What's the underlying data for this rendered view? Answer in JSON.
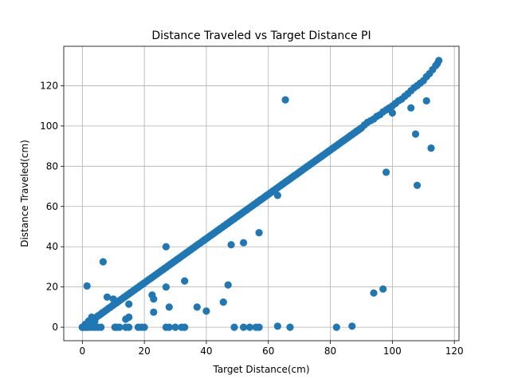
{
  "chart_data": {
    "type": "scatter",
    "title": "Distance Traveled vs Target Distance PI",
    "xlabel": "Target Distance(cm)",
    "ylabel": "Distance Traveled(cm)",
    "xlim": [
      -6,
      121.5
    ],
    "ylim": [
      -6.7,
      139.6
    ],
    "xticks": [
      0,
      20,
      40,
      60,
      80,
      100,
      120
    ],
    "yticks": [
      0,
      20,
      40,
      60,
      80,
      100,
      120
    ],
    "grid": true,
    "point_color": "#1f77b4",
    "series": [
      {
        "trend_points": [
          [
            0,
            0
          ],
          [
            0.5,
            0.4
          ],
          [
            1,
            1.5
          ],
          [
            1.5,
            1.2
          ],
          [
            2,
            2.4
          ],
          [
            2.5,
            2.7
          ],
          [
            3,
            3.4
          ],
          [
            3.5,
            3.8
          ],
          [
            4,
            4.5
          ],
          [
            4.5,
            4.9
          ],
          [
            5,
            5.6
          ],
          [
            5.5,
            6.0
          ],
          [
            6,
            6.6
          ],
          [
            6.5,
            7.2
          ],
          [
            7,
            7.7
          ],
          [
            7.5,
            8.3
          ],
          [
            8,
            8.8
          ],
          [
            8.5,
            9.4
          ],
          [
            9,
            9.9
          ],
          [
            9.5,
            10.5
          ],
          [
            10,
            11.0
          ],
          [
            10.5,
            11.6
          ],
          [
            11,
            12.1
          ],
          [
            11.5,
            12.7
          ],
          [
            12,
            13.2
          ],
          [
            12.5,
            13.8
          ],
          [
            13,
            14.3
          ],
          [
            13.5,
            14.9
          ],
          [
            14,
            15.4
          ],
          [
            14.5,
            16.0
          ],
          [
            15,
            16.5
          ],
          [
            15.5,
            17.1
          ],
          [
            16,
            17.6
          ],
          [
            16.5,
            18.2
          ],
          [
            17,
            18.7
          ],
          [
            17.5,
            19.3
          ],
          [
            18,
            19.8
          ],
          [
            18.5,
            20.4
          ],
          [
            19,
            20.9
          ],
          [
            19.5,
            21.5
          ],
          [
            20,
            22.0
          ],
          [
            20.5,
            22.6
          ],
          [
            21,
            23.1
          ],
          [
            21.5,
            23.7
          ],
          [
            22,
            24.2
          ],
          [
            22.5,
            24.8
          ],
          [
            23,
            25.3
          ],
          [
            23.5,
            25.9
          ],
          [
            24,
            26.4
          ],
          [
            24.5,
            27.0
          ],
          [
            25,
            27.5
          ],
          [
            25.5,
            28.1
          ],
          [
            26,
            28.6
          ],
          [
            26.5,
            29.2
          ],
          [
            27,
            29.7
          ],
          [
            27.5,
            30.3
          ],
          [
            28,
            30.8
          ],
          [
            28.5,
            31.4
          ],
          [
            29,
            31.9
          ],
          [
            29.5,
            32.5
          ],
          [
            30,
            33.0
          ],
          [
            30.5,
            33.6
          ],
          [
            31,
            34.1
          ],
          [
            31.5,
            34.7
          ],
          [
            32,
            35.2
          ],
          [
            32.5,
            35.8
          ],
          [
            33,
            36.3
          ],
          [
            33.5,
            36.9
          ],
          [
            34,
            37.4
          ],
          [
            34.5,
            38.0
          ],
          [
            35,
            38.5
          ],
          [
            35.5,
            39.1
          ],
          [
            36,
            39.6
          ],
          [
            36.5,
            40.2
          ],
          [
            37,
            40.7
          ],
          [
            37.5,
            41.3
          ],
          [
            38,
            41.8
          ],
          [
            38.5,
            42.4
          ],
          [
            39,
            42.9
          ],
          [
            39.5,
            43.5
          ],
          [
            40,
            44.0
          ],
          [
            40.5,
            44.6
          ],
          [
            41,
            45.1
          ],
          [
            41.5,
            45.7
          ],
          [
            42,
            46.2
          ],
          [
            42.5,
            46.8
          ],
          [
            43,
            47.3
          ],
          [
            43.5,
            47.9
          ],
          [
            44,
            48.4
          ],
          [
            44.5,
            49.0
          ],
          [
            45,
            49.5
          ],
          [
            45.5,
            50.1
          ],
          [
            46,
            50.6
          ],
          [
            46.5,
            51.2
          ],
          [
            47,
            51.7
          ],
          [
            47.5,
            52.3
          ],
          [
            48,
            52.8
          ],
          [
            48.5,
            53.4
          ],
          [
            49,
            53.9
          ],
          [
            49.5,
            54.5
          ],
          [
            50,
            55.0
          ],
          [
            50.5,
            55.6
          ],
          [
            51,
            56.1
          ],
          [
            51.5,
            56.7
          ],
          [
            52,
            57.2
          ],
          [
            52.5,
            57.8
          ],
          [
            53,
            58.3
          ],
          [
            53.5,
            58.9
          ],
          [
            54,
            59.4
          ],
          [
            54.5,
            60.0
          ],
          [
            55,
            60.5
          ],
          [
            55.5,
            61.1
          ],
          [
            56,
            61.6
          ],
          [
            56.5,
            62.2
          ],
          [
            57,
            62.7
          ],
          [
            57.5,
            63.3
          ],
          [
            58,
            63.8
          ],
          [
            58.5,
            64.4
          ],
          [
            59,
            64.9
          ],
          [
            59.5,
            65.5
          ],
          [
            60,
            66.0
          ],
          [
            60.5,
            66.6
          ],
          [
            61,
            67.1
          ],
          [
            61.5,
            67.7
          ],
          [
            62,
            68.2
          ],
          [
            62.5,
            68.8
          ],
          [
            63,
            69.3
          ],
          [
            63.5,
            69.9
          ],
          [
            64,
            70.4
          ],
          [
            64.5,
            71.0
          ],
          [
            65,
            71.5
          ],
          [
            65.5,
            72.1
          ],
          [
            66,
            72.6
          ],
          [
            66.5,
            73.2
          ],
          [
            67,
            73.7
          ],
          [
            67.5,
            74.3
          ],
          [
            68,
            74.8
          ],
          [
            68.5,
            75.4
          ],
          [
            69,
            75.9
          ],
          [
            69.5,
            76.5
          ],
          [
            70,
            77.0
          ],
          [
            70.5,
            77.6
          ],
          [
            71,
            78.1
          ],
          [
            71.5,
            78.7
          ],
          [
            72,
            79.2
          ],
          [
            72.5,
            79.8
          ],
          [
            73,
            80.3
          ],
          [
            73.5,
            80.9
          ],
          [
            74,
            81.4
          ],
          [
            74.5,
            82.0
          ],
          [
            75,
            82.5
          ],
          [
            75.5,
            83.1
          ],
          [
            76,
            83.6
          ],
          [
            76.5,
            84.2
          ],
          [
            77,
            84.7
          ],
          [
            77.5,
            85.3
          ],
          [
            78,
            85.8
          ],
          [
            78.5,
            86.4
          ],
          [
            79,
            86.9
          ],
          [
            79.5,
            87.5
          ],
          [
            80,
            88.0
          ],
          [
            80.5,
            88.6
          ],
          [
            81,
            89.1
          ],
          [
            81.5,
            89.7
          ],
          [
            82,
            90.2
          ],
          [
            82.5,
            90.8
          ],
          [
            83,
            91.3
          ],
          [
            83.5,
            91.9
          ],
          [
            84,
            92.4
          ],
          [
            84.5,
            93.0
          ],
          [
            85,
            93.5
          ],
          [
            85.5,
            94.1
          ],
          [
            86,
            94.6
          ],
          [
            86.5,
            95.2
          ],
          [
            87,
            95.7
          ],
          [
            87.5,
            96.3
          ],
          [
            88,
            96.8
          ],
          [
            88.5,
            97.4
          ],
          [
            89,
            97.9
          ],
          [
            89.5,
            98.5
          ],
          [
            90,
            99.0
          ],
          [
            91,
            100.5
          ],
          [
            92,
            101.8
          ],
          [
            93,
            102.6
          ],
          [
            94,
            103.5
          ],
          [
            95,
            104.8
          ],
          [
            96,
            105.6
          ],
          [
            97,
            107.0
          ],
          [
            98,
            108.0
          ],
          [
            99,
            109.0
          ],
          [
            100,
            110.0
          ],
          [
            101,
            111.2
          ],
          [
            102,
            112.5
          ],
          [
            103,
            113.3
          ],
          [
            104,
            114.8
          ],
          [
            105,
            116.0
          ],
          [
            106,
            117.5
          ],
          [
            107,
            119.0
          ],
          [
            108,
            120.0
          ],
          [
            109,
            121.3
          ],
          [
            110,
            122.5
          ],
          [
            111,
            124.5
          ],
          [
            112,
            126.0
          ],
          [
            113,
            128.0
          ],
          [
            114,
            130.0
          ],
          [
            115,
            132.5
          ]
        ],
        "outlier_points": [
          [
            0,
            0
          ],
          [
            0.5,
            0
          ],
          [
            1,
            0
          ],
          [
            1.5,
            0
          ],
          [
            2,
            0
          ],
          [
            3,
            0
          ],
          [
            4,
            0
          ],
          [
            5,
            0
          ],
          [
            6,
            0
          ],
          [
            2,
            3
          ],
          [
            4,
            3
          ],
          [
            3,
            5
          ],
          [
            10.5,
            0
          ],
          [
            11,
            0
          ],
          [
            12,
            0
          ],
          [
            14,
            0
          ],
          [
            15,
            0
          ],
          [
            18,
            0
          ],
          [
            19,
            0
          ],
          [
            20,
            0
          ],
          [
            27,
            0
          ],
          [
            28,
            0
          ],
          [
            30,
            0
          ],
          [
            32,
            0
          ],
          [
            33,
            0
          ],
          [
            49,
            0
          ],
          [
            52,
            0
          ],
          [
            54,
            0
          ],
          [
            56,
            0
          ],
          [
            57,
            0
          ],
          [
            63,
            0.5
          ],
          [
            67,
            0
          ],
          [
            82,
            0
          ],
          [
            87,
            0.5
          ],
          [
            1.5,
            20.5
          ],
          [
            6.7,
            32.5
          ],
          [
            8,
            15
          ],
          [
            10,
            14
          ],
          [
            14,
            4
          ],
          [
            15,
            5
          ],
          [
            15,
            11.5
          ],
          [
            22.5,
            16
          ],
          [
            23,
            14
          ],
          [
            23,
            7.5
          ],
          [
            27,
            20
          ],
          [
            27,
            40
          ],
          [
            28,
            10
          ],
          [
            33,
            23
          ],
          [
            37,
            10
          ],
          [
            40,
            8
          ],
          [
            45.5,
            12.5
          ],
          [
            47,
            21
          ],
          [
            48,
            41
          ],
          [
            52,
            42
          ],
          [
            57,
            47
          ],
          [
            63,
            65.5
          ],
          [
            65.5,
            113
          ],
          [
            94,
            17
          ],
          [
            97,
            19
          ],
          [
            98,
            77
          ],
          [
            100,
            106.5
          ],
          [
            106,
            109
          ],
          [
            107.5,
            96
          ],
          [
            108,
            70.5
          ],
          [
            111,
            112.5
          ],
          [
            112.5,
            89
          ],
          [
            114.5,
            131
          ]
        ]
      }
    ]
  }
}
